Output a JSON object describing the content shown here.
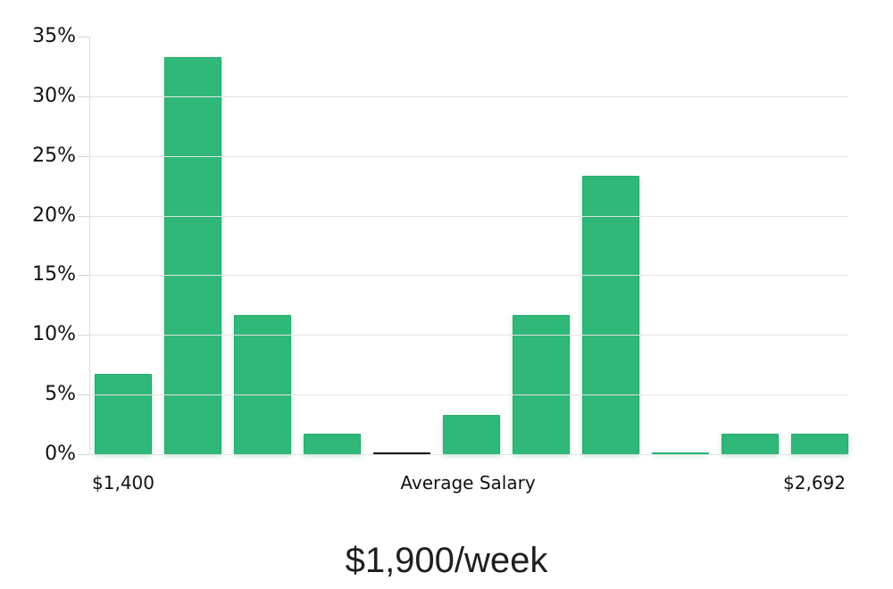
{
  "chart_data": {
    "type": "bar",
    "title": "$1,900/week",
    "values": [
      6.7,
      33.3,
      11.7,
      1.7,
      0.1,
      3.3,
      11.7,
      23.3,
      0.1,
      1.7,
      1.7
    ],
    "highlight_index": 4,
    "y_ticks": [
      "0%",
      "5%",
      "10%",
      "15%",
      "20%",
      "25%",
      "30%",
      "35%"
    ],
    "y_tick_values": [
      0,
      5,
      10,
      15,
      20,
      25,
      30,
      35
    ],
    "ylim": [
      0,
      35
    ],
    "grid": "horizontal",
    "gridline_values": [
      0,
      5,
      10,
      15,
      20,
      25,
      30
    ],
    "x_axis_labels": [
      {
        "text": "$1,400",
        "anchor": "first-bar"
      },
      {
        "text": "Average Salary",
        "anchor": "center"
      },
      {
        "text": "$2,692",
        "anchor": "last-bar"
      }
    ],
    "bar_color": "#2fb87a",
    "bar_border_color": "#29a86b",
    "highlight_bar_color": "#131518",
    "highlight_bar_border_color": "#000000",
    "gridline_color": "#e4e4e4",
    "axis_color": "#dcdcdc",
    "text_color": "#111111"
  }
}
